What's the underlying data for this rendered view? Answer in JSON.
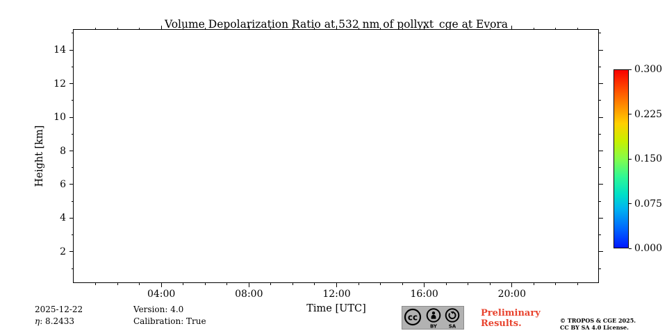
{
  "chart_data": {
    "type": "heatmap",
    "title": "Volume Depolarization Ratio at 532 nm of pollyxt_cge at Evora",
    "xlabel": "Time [UTC]",
    "ylabel": "Height [km]",
    "x_tick_labels": [
      "04:00",
      "08:00",
      "12:00",
      "16:00",
      "20:00"
    ],
    "x_tick_hours": [
      4,
      8,
      12,
      16,
      20
    ],
    "xlim_hours": [
      0,
      24
    ],
    "x_minor_every_hours": 1,
    "y_ticks": [
      2,
      4,
      6,
      8,
      10,
      12,
      14
    ],
    "y_minor_every_km": 1,
    "ylim": [
      0.1,
      15.2
    ],
    "grid": false,
    "values": [],
    "note": "plot area is empty - no depolarization data rendered",
    "colorbar": {
      "ticks_top_to_bottom": [
        "0.300",
        "0.225",
        "0.150",
        "0.075",
        "0.000"
      ],
      "vmin": 0.0,
      "vmax": 0.3,
      "colormap": "jet",
      "position": "right"
    }
  },
  "footer": {
    "date": "2025-12-22",
    "eta_label": "η",
    "eta_value": ": 8.2433",
    "version": "Version: 4.0",
    "calibration": "Calibration: True",
    "preliminary_line1": "Preliminary",
    "preliminary_line2": "Results.",
    "copyright": "© TROPOS & CGE 2025.",
    "license": "CC BY SA 4.0 License.",
    "cc_badge": {
      "cc": "cc",
      "by": "BY",
      "sa": "SA"
    }
  },
  "colors": {
    "preliminary_red": "#e8432e",
    "badge_gray": "#b2b2b2",
    "axis_black": "#000000"
  }
}
